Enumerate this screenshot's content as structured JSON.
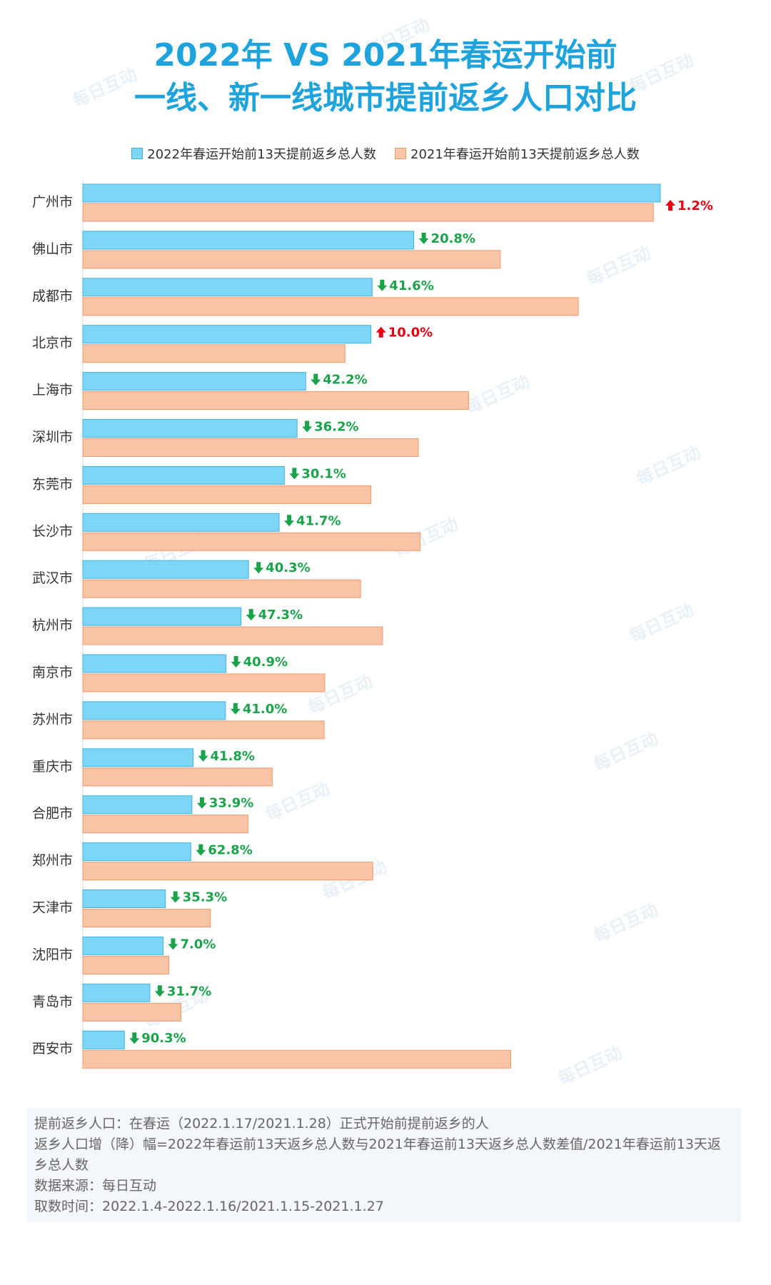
{
  "title": {
    "line1": "2022年 VS 2021年春运开始前",
    "line2": "一线、新一线城市提前返乡人口对比"
  },
  "colors": {
    "title": "#1ea3dc",
    "series_2022": "#7dd6f5",
    "series_2022_border": "#3fb2e0",
    "series_2021": "#f9c4a6",
    "series_2021_border": "#ee9a6e",
    "increase": "#e60012",
    "decrease": "#1aa34a"
  },
  "chart_data": {
    "type": "bar",
    "orientation": "horizontal",
    "categories": [
      "广州市",
      "佛山市",
      "成都市",
      "北京市",
      "上海市",
      "深圳市",
      "东莞市",
      "长沙市",
      "武汉市",
      "杭州市",
      "南京市",
      "苏州市",
      "重庆市",
      "合肥市",
      "郑州市",
      "天津市",
      "沈阳市",
      "青岛市",
      "西安市"
    ],
    "series": [
      {
        "name": "2022年春运开始前13天提前返乡总人数",
        "values": [
          100,
          57.3,
          50.1,
          49.9,
          38.6,
          37.1,
          34.9,
          34,
          28.7,
          27.4,
          24.8,
          24.7,
          19.1,
          18.9,
          18.7,
          14.3,
          13.9,
          11.6,
          7.2
        ]
      },
      {
        "name": "2021年春运开始前13天提前返乡总人数",
        "values": [
          98.8,
          72.3,
          85.8,
          45.4,
          66.8,
          58.1,
          49.9,
          58.4,
          48.1,
          51.9,
          41.9,
          41.8,
          32.8,
          28.6,
          50.2,
          22.1,
          14.9,
          17,
          74.1
        ]
      }
    ],
    "changes": [
      {
        "direction": "up",
        "label": "1.2%"
      },
      {
        "direction": "down",
        "label": "20.8%"
      },
      {
        "direction": "down",
        "label": "41.6%"
      },
      {
        "direction": "up",
        "label": "10.0%"
      },
      {
        "direction": "down",
        "label": "42.2%"
      },
      {
        "direction": "down",
        "label": "36.2%"
      },
      {
        "direction": "down",
        "label": "30.1%"
      },
      {
        "direction": "down",
        "label": "41.7%"
      },
      {
        "direction": "down",
        "label": "40.3%"
      },
      {
        "direction": "down",
        "label": "47.3%"
      },
      {
        "direction": "down",
        "label": "40.9%"
      },
      {
        "direction": "down",
        "label": "41.0%"
      },
      {
        "direction": "down",
        "label": "41.8%"
      },
      {
        "direction": "down",
        "label": "33.9%"
      },
      {
        "direction": "down",
        "label": "62.8%"
      },
      {
        "direction": "down",
        "label": "35.3%"
      },
      {
        "direction": "down",
        "label": "7.0%"
      },
      {
        "direction": "down",
        "label": "31.7%"
      },
      {
        "direction": "down",
        "label": "90.3%"
      }
    ],
    "xlim": [
      0,
      100
    ],
    "grid": false,
    "legend_position": "top"
  },
  "notes": {
    "line1": "提前返乡人口：在春运（2022.1.17/2021.1.28）正式开始前提前返乡的人",
    "line2": "返乡人口增（降）幅=2022年春运前13天返乡总人数与2021年春运前13天返乡总人数差值/2021年春运前13天返乡总人数",
    "line3": "数据来源：每日互动",
    "line4": "取数时间：2022.1.4-2022.1.16/2021.1.15-2021.1.27"
  },
  "watermark": "每日互动"
}
